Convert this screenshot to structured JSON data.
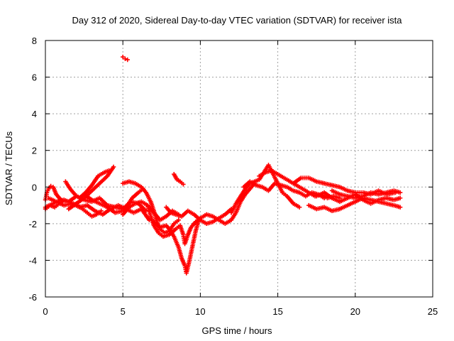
{
  "chart_data": {
    "type": "scatter",
    "title": "Day 312 of 2020, Sidereal Day-to-day VTEC variation (SDTVAR) for receiver ista",
    "xlabel": "GPS time / hours",
    "ylabel": "SDTVAR / TECUs",
    "xlim": [
      0,
      25
    ],
    "ylim": [
      -6,
      8
    ],
    "xticks": [
      0,
      5,
      10,
      15,
      20,
      25
    ],
    "yticks": [
      -6,
      -4,
      -2,
      0,
      2,
      4,
      6,
      8
    ],
    "xtick_labels": [
      "0",
      "5",
      "10",
      "15",
      "20",
      "25"
    ],
    "ytick_labels": [
      "-6",
      "-4",
      "-2",
      "0",
      "2",
      "4",
      "6",
      "8"
    ],
    "grid": true,
    "marker": "+",
    "color": "#ff0000",
    "series": [
      {
        "name": "track-1",
        "points": [
          [
            0.0,
            -1.1
          ],
          [
            0.5,
            -0.9
          ],
          [
            1.0,
            -0.7
          ],
          [
            1.5,
            -0.8
          ],
          [
            2.0,
            -0.5
          ],
          [
            2.5,
            -0.7
          ],
          [
            3.0,
            -0.8
          ],
          [
            3.5,
            -0.6
          ],
          [
            4.0,
            -1.0
          ],
          [
            4.5,
            -1.1
          ],
          [
            5.0,
            -1.2
          ],
          [
            5.5,
            -0.8
          ],
          [
            6.0,
            -0.9
          ],
          [
            6.5,
            -1.3
          ]
        ]
      },
      {
        "name": "track-2",
        "points": [
          [
            0.2,
            -0.6
          ],
          [
            0.7,
            -0.8
          ],
          [
            1.2,
            -1.0
          ],
          [
            1.7,
            -0.9
          ],
          [
            2.2,
            -1.1
          ],
          [
            2.7,
            -1.0
          ],
          [
            3.2,
            -1.3
          ],
          [
            3.7,
            -1.5
          ],
          [
            4.2,
            -1.2
          ],
          [
            4.7,
            -1.0
          ],
          [
            5.2,
            -1.2
          ],
          [
            5.7,
            -1.4
          ],
          [
            6.2,
            -1.2
          ],
          [
            6.7,
            -1.8
          ]
        ]
      },
      {
        "name": "track-3",
        "points": [
          [
            0.0,
            -0.7
          ],
          [
            0.1,
            -0.3
          ],
          [
            0.2,
            -0.1
          ],
          [
            0.35,
            0.05
          ],
          [
            0.5,
            0.0
          ],
          [
            0.7,
            -0.4
          ],
          [
            0.9,
            -0.6
          ],
          [
            1.1,
            -0.8
          ]
        ]
      },
      {
        "name": "track-4",
        "points": [
          [
            1.5,
            -1.2
          ],
          [
            2.0,
            -0.9
          ],
          [
            2.5,
            -0.6
          ],
          [
            3.0,
            -0.2
          ],
          [
            3.5,
            0.2
          ],
          [
            4.0,
            0.6
          ],
          [
            4.4,
            1.1
          ]
        ]
      },
      {
        "name": "track-5",
        "points": [
          [
            1.3,
            0.3
          ],
          [
            1.6,
            -0.1
          ],
          [
            1.9,
            -0.4
          ],
          [
            2.2,
            -0.6
          ],
          [
            2.6,
            -0.3
          ],
          [
            3.0,
            0.1
          ],
          [
            3.4,
            0.6
          ],
          [
            3.8,
            0.8
          ],
          [
            4.1,
            0.9
          ]
        ]
      },
      {
        "name": "track-6",
        "points": [
          [
            2.5,
            -0.4
          ],
          [
            3.0,
            -0.7
          ],
          [
            3.5,
            -0.9
          ],
          [
            4.0,
            -1.1
          ],
          [
            4.5,
            -1.4
          ],
          [
            5.0,
            -1.3
          ],
          [
            5.3,
            -1.0
          ],
          [
            5.6,
            -0.6
          ],
          [
            6.0,
            -0.3
          ],
          [
            6.3,
            -0.1
          ]
        ]
      },
      {
        "name": "track-7",
        "points": [
          [
            5.0,
            -1.5
          ],
          [
            5.4,
            -1.1
          ],
          [
            5.8,
            -0.9
          ],
          [
            6.2,
            -0.8
          ],
          [
            6.6,
            -1.0
          ],
          [
            7.0,
            -1.4
          ],
          [
            7.4,
            -1.8
          ],
          [
            7.8,
            -1.6
          ],
          [
            8.2,
            -1.3
          ],
          [
            8.6,
            -1.5
          ]
        ]
      },
      {
        "name": "track-8",
        "points": [
          [
            5.0,
            0.2
          ],
          [
            5.4,
            0.3
          ],
          [
            5.8,
            0.2
          ],
          [
            6.2,
            0.0
          ],
          [
            6.5,
            -0.3
          ],
          [
            6.8,
            -0.8
          ],
          [
            7.0,
            -1.3
          ],
          [
            7.2,
            -1.9
          ],
          [
            7.4,
            -2.3
          ],
          [
            7.7,
            -2.5
          ],
          [
            8.0,
            -2.4
          ],
          [
            8.3,
            -2.0
          ],
          [
            8.6,
            -1.8
          ]
        ]
      },
      {
        "name": "track-9",
        "points": [
          [
            6.6,
            -1.0
          ],
          [
            6.8,
            -1.6
          ],
          [
            7.0,
            -2.1
          ],
          [
            7.3,
            -2.5
          ],
          [
            7.6,
            -2.7
          ],
          [
            8.0,
            -2.6
          ],
          [
            8.4,
            -2.3
          ],
          [
            8.7,
            -2.1
          ],
          [
            8.9,
            -2.6
          ],
          [
            9.0,
            -3.1
          ],
          [
            9.2,
            -2.6
          ],
          [
            9.4,
            -2.2
          ],
          [
            9.7,
            -1.9
          ]
        ]
      },
      {
        "name": "track-10",
        "points": [
          [
            7.0,
            -1.9
          ],
          [
            7.4,
            -2.2
          ],
          [
            7.8,
            -2.1
          ],
          [
            8.0,
            -2.3
          ],
          [
            8.3,
            -2.7
          ],
          [
            8.6,
            -3.3
          ],
          [
            8.8,
            -3.9
          ],
          [
            9.0,
            -4.3
          ],
          [
            9.1,
            -4.7
          ],
          [
            9.3,
            -4.0
          ],
          [
            9.5,
            -3.2
          ],
          [
            9.7,
            -2.4
          ],
          [
            9.9,
            -1.8
          ]
        ]
      },
      {
        "name": "track-11",
        "points": [
          [
            7.8,
            -1.1
          ],
          [
            8.1,
            -1.4
          ],
          [
            8.4,
            -1.5
          ],
          [
            8.8,
            -1.6
          ],
          [
            9.2,
            -1.3
          ],
          [
            9.6,
            -1.5
          ],
          [
            10.0,
            -1.8
          ],
          [
            10.4,
            -2.0
          ],
          [
            10.8,
            -1.9
          ],
          [
            11.2,
            -1.7
          ],
          [
            11.6,
            -1.5
          ],
          [
            12.0,
            -1.2
          ]
        ]
      },
      {
        "name": "track-12",
        "points": [
          [
            9.6,
            -2.0
          ],
          [
            10.0,
            -1.7
          ],
          [
            10.4,
            -1.5
          ],
          [
            10.8,
            -1.6
          ],
          [
            11.2,
            -1.8
          ],
          [
            11.6,
            -2.0
          ],
          [
            12.0,
            -1.8
          ],
          [
            12.3,
            -1.4
          ],
          [
            12.6,
            -0.8
          ],
          [
            12.9,
            -0.4
          ],
          [
            13.2,
            -0.1
          ],
          [
            13.5,
            0.2
          ]
        ]
      },
      {
        "name": "track-13",
        "points": [
          [
            12.0,
            -1.4
          ],
          [
            12.3,
            -0.9
          ],
          [
            12.6,
            -0.5
          ],
          [
            12.9,
            -0.1
          ],
          [
            13.2,
            0.2
          ],
          [
            13.5,
            0.3
          ],
          [
            13.8,
            0.4
          ],
          [
            14.1,
            0.8
          ],
          [
            14.4,
            1.2
          ],
          [
            14.7,
            0.7
          ],
          [
            15.0,
            0.2
          ],
          [
            15.3,
            -0.3
          ],
          [
            15.6,
            -0.5
          ],
          [
            16.0,
            -0.9
          ],
          [
            16.4,
            -1.1
          ]
        ]
      },
      {
        "name": "track-14",
        "points": [
          [
            12.8,
            0.0
          ],
          [
            13.2,
            0.3
          ],
          [
            13.6,
            0.1
          ],
          [
            14.0,
            0.0
          ],
          [
            14.4,
            -0.2
          ],
          [
            14.8,
            0.2
          ],
          [
            15.2,
            0.1
          ],
          [
            15.6,
            0.0
          ],
          [
            16.0,
            -0.2
          ],
          [
            16.4,
            -0.3
          ],
          [
            16.8,
            -0.5
          ],
          [
            17.2,
            -0.3
          ],
          [
            17.6,
            -0.4
          ],
          [
            18.0,
            -0.6
          ]
        ]
      },
      {
        "name": "track-15",
        "points": [
          [
            13.8,
            0.6
          ],
          [
            14.2,
            0.8
          ],
          [
            14.6,
            0.9
          ],
          [
            15.0,
            0.7
          ],
          [
            15.4,
            0.5
          ],
          [
            15.8,
            0.3
          ],
          [
            16.2,
            0.1
          ],
          [
            16.6,
            -0.1
          ],
          [
            17.0,
            -0.3
          ],
          [
            17.4,
            -0.5
          ],
          [
            17.8,
            -0.4
          ],
          [
            18.2,
            -0.6
          ],
          [
            18.6,
            -0.5
          ],
          [
            19.0,
            -0.6
          ]
        ]
      },
      {
        "name": "track-16",
        "points": [
          [
            16.0,
            0.2
          ],
          [
            16.5,
            0.5
          ],
          [
            17.0,
            0.5
          ],
          [
            17.5,
            0.3
          ],
          [
            18.0,
            0.2
          ],
          [
            18.5,
            0.1
          ],
          [
            19.0,
            0.0
          ],
          [
            19.5,
            -0.2
          ],
          [
            20.0,
            -0.3
          ],
          [
            20.5,
            -0.3
          ],
          [
            21.0,
            -0.4
          ],
          [
            21.5,
            -0.2
          ],
          [
            22.0,
            -0.4
          ],
          [
            22.6,
            -0.3
          ]
        ]
      },
      {
        "name": "track-17",
        "points": [
          [
            17.0,
            -1.0
          ],
          [
            17.5,
            -1.2
          ],
          [
            18.0,
            -1.1
          ],
          [
            18.5,
            -1.3
          ],
          [
            19.0,
            -1.2
          ],
          [
            19.5,
            -1.0
          ],
          [
            20.0,
            -0.8
          ],
          [
            20.5,
            -0.6
          ],
          [
            21.0,
            -0.7
          ],
          [
            21.5,
            -0.8
          ],
          [
            22.0,
            -0.9
          ],
          [
            22.5,
            -1.0
          ],
          [
            22.9,
            -1.1
          ]
        ]
      },
      {
        "name": "track-18",
        "points": [
          [
            17.5,
            -0.5
          ],
          [
            18.0,
            -0.3
          ],
          [
            18.5,
            -0.6
          ],
          [
            19.0,
            -0.8
          ],
          [
            19.5,
            -0.6
          ],
          [
            20.0,
            -0.4
          ],
          [
            20.5,
            -0.7
          ],
          [
            21.0,
            -0.9
          ],
          [
            21.5,
            -0.7
          ],
          [
            22.0,
            -0.6
          ],
          [
            22.5,
            -0.7
          ],
          [
            22.9,
            -0.6
          ]
        ]
      },
      {
        "name": "track-19",
        "points": [
          [
            18.5,
            -0.2
          ],
          [
            19.0,
            -0.4
          ],
          [
            19.5,
            -0.5
          ],
          [
            20.0,
            -0.6
          ],
          [
            20.5,
            -0.5
          ],
          [
            21.0,
            -0.3
          ],
          [
            21.5,
            -0.4
          ],
          [
            22.0,
            -0.3
          ],
          [
            22.5,
            -0.2
          ],
          [
            22.9,
            -0.3
          ]
        ]
      },
      {
        "name": "track-20",
        "points": [
          [
            5.0,
            7.1
          ],
          [
            5.15,
            7.0
          ],
          [
            5.3,
            6.95
          ]
        ]
      },
      {
        "name": "track-21",
        "points": [
          [
            8.3,
            0.7
          ],
          [
            8.5,
            0.4
          ],
          [
            8.7,
            0.3
          ],
          [
            8.9,
            0.15
          ]
        ]
      },
      {
        "name": "track-22",
        "points": [
          [
            0.0,
            -1.2
          ],
          [
            0.3,
            -1.0
          ],
          [
            0.6,
            -1.1
          ],
          [
            0.9,
            -0.9
          ],
          [
            1.2,
            -0.7
          ],
          [
            1.5,
            -0.8
          ],
          [
            1.8,
            -0.9
          ],
          [
            2.1,
            -1.0
          ],
          [
            2.4,
            -1.2
          ],
          [
            2.7,
            -1.4
          ],
          [
            3.0,
            -1.6
          ],
          [
            3.3,
            -1.5
          ],
          [
            3.6,
            -1.3
          ]
        ]
      }
    ]
  }
}
